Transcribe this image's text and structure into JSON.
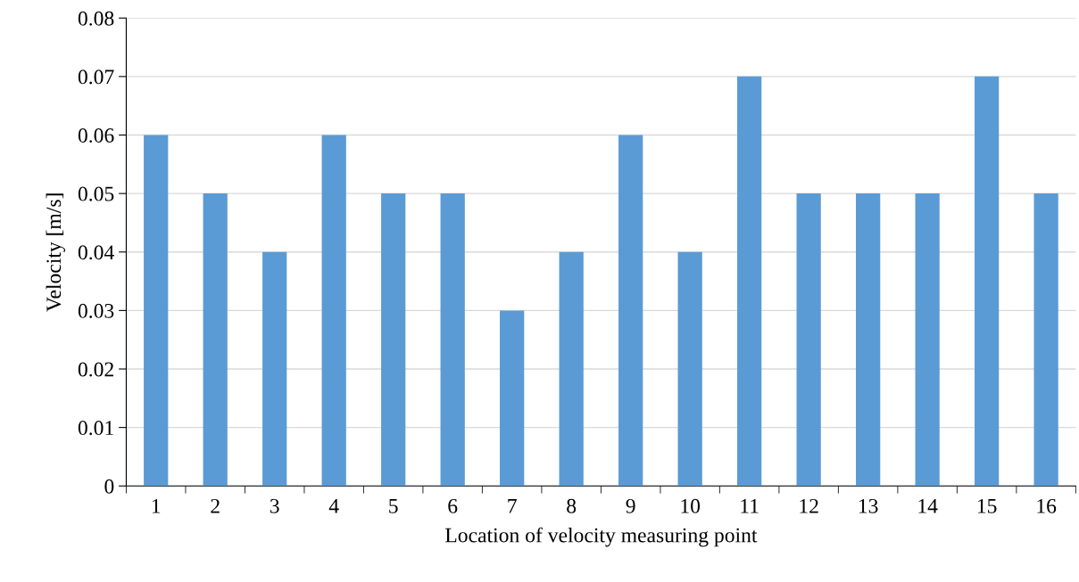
{
  "chart_data": {
    "type": "bar",
    "xlabel": "Location of velocity measuring point",
    "ylabel": "Velocity [m/s]",
    "categories": [
      "1",
      "2",
      "3",
      "4",
      "5",
      "6",
      "7",
      "8",
      "9",
      "10",
      "11",
      "12",
      "13",
      "14",
      "15",
      "16"
    ],
    "values": [
      0.06,
      0.05,
      0.04,
      0.06,
      0.05,
      0.05,
      0.03,
      0.04,
      0.06,
      0.04,
      0.07,
      0.05,
      0.05,
      0.05,
      0.07,
      0.05
    ],
    "color": "#5b9bd5",
    "ylim": [
      0,
      0.08
    ],
    "yticks": [
      0,
      0.01,
      0.02,
      0.03,
      0.04,
      0.05,
      0.06,
      0.07,
      0.08
    ],
    "grid": "y",
    "legend": false
  }
}
